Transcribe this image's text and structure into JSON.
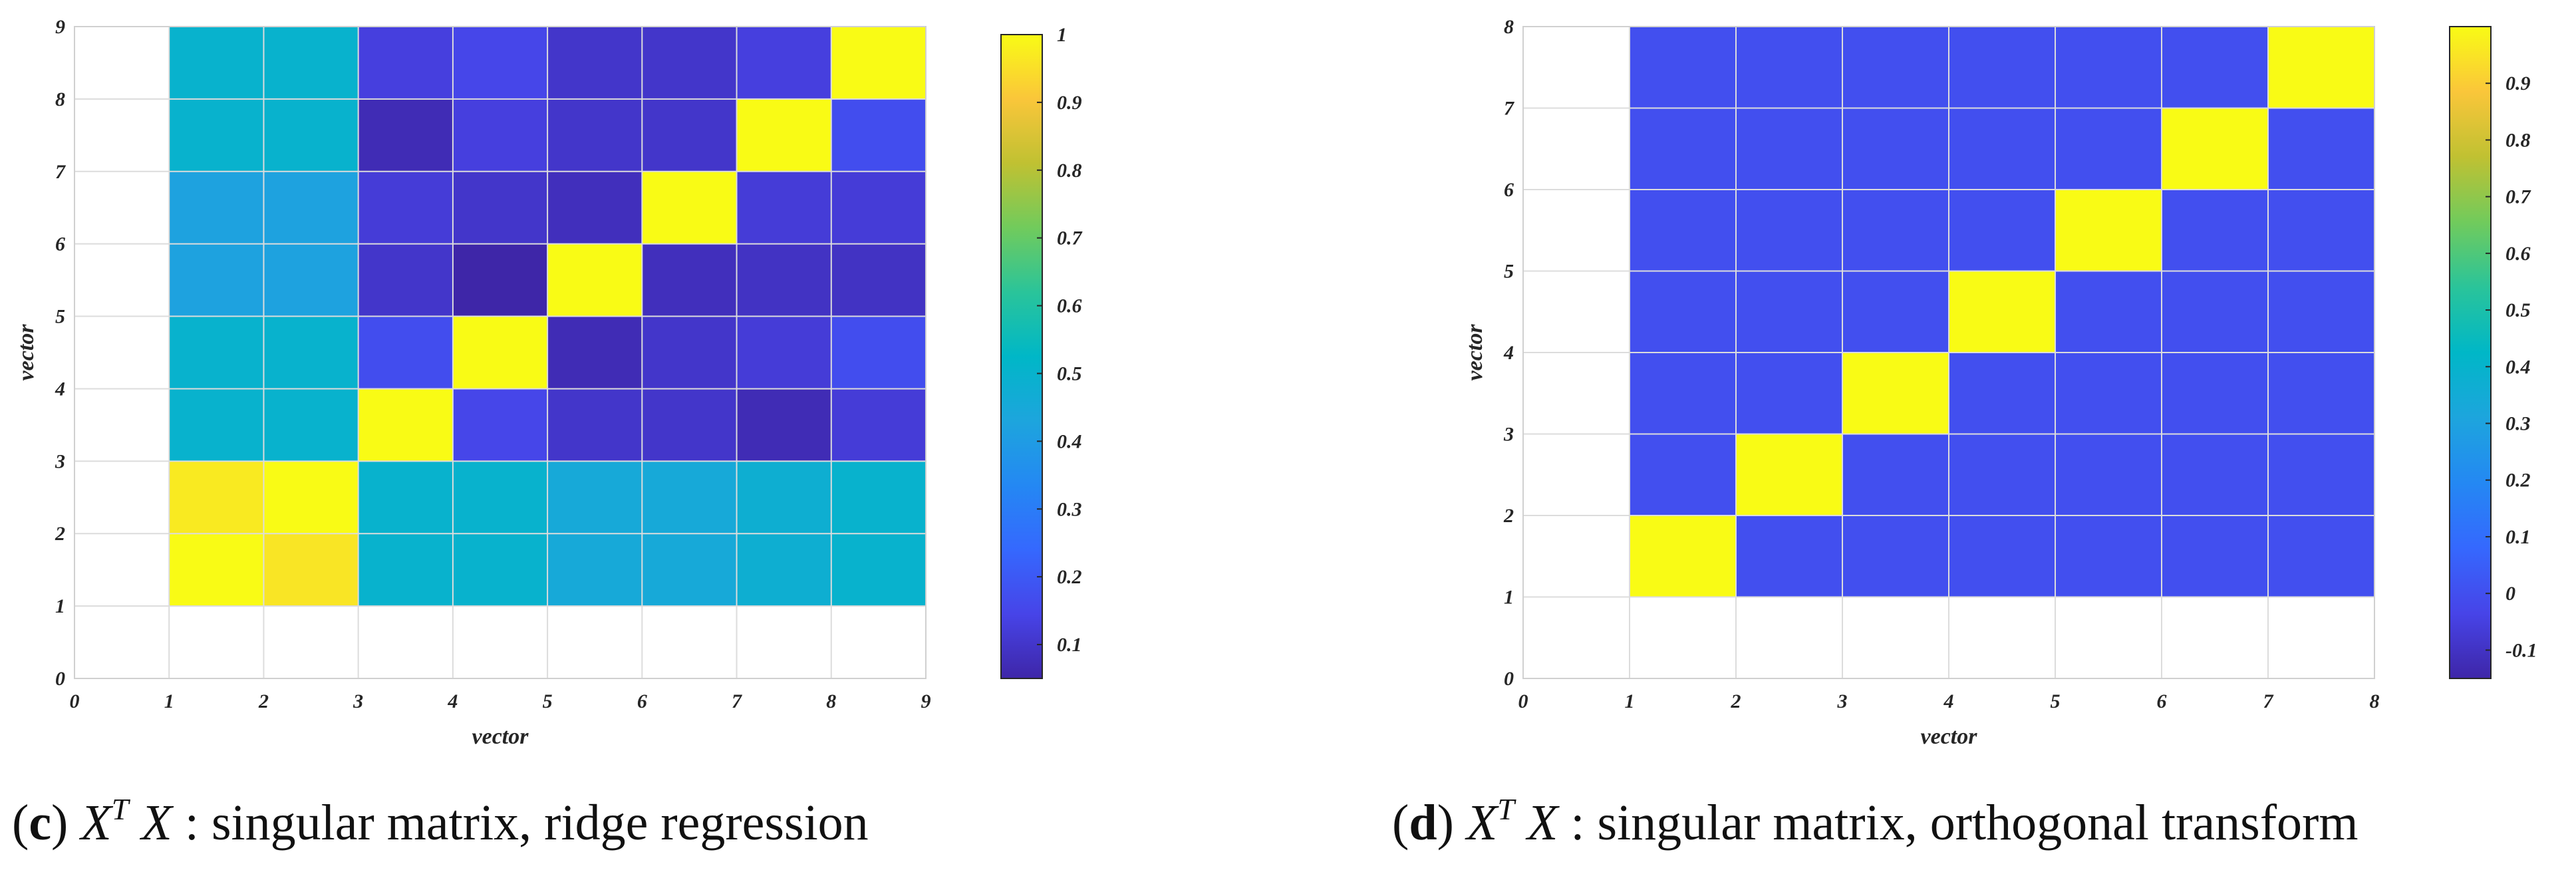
{
  "chart_data": [
    {
      "id": "c",
      "type": "heatmap",
      "xlabel": "vector",
      "ylabel": "vector",
      "xlim": [
        0,
        9
      ],
      "ylim": [
        0,
        9
      ],
      "xticks": [
        "0",
        "1",
        "2",
        "3",
        "4",
        "5",
        "6",
        "7",
        "8",
        "9"
      ],
      "yticks": [
        "0",
        "1",
        "2",
        "3",
        "4",
        "5",
        "6",
        "7",
        "8",
        "9"
      ],
      "extent": {
        "x": [
          1,
          9
        ],
        "y": [
          1,
          9
        ]
      },
      "colorbar": {
        "min": 0.05,
        "max": 1.0,
        "ticks": [
          "0.1",
          "0.2",
          "0.3",
          "0.4",
          "0.5",
          "0.6",
          "0.7",
          "0.8",
          "0.9",
          "1"
        ],
        "tick_values": [
          0.1,
          0.2,
          0.3,
          0.4,
          0.5,
          0.6,
          0.7,
          0.8,
          0.9,
          1.0
        ]
      },
      "matrix": [
        [
          1.0,
          0.96,
          0.5,
          0.5,
          0.45,
          0.45,
          0.48,
          0.5
        ],
        [
          0.97,
          1.0,
          0.5,
          0.5,
          0.45,
          0.45,
          0.48,
          0.5
        ],
        [
          0.5,
          0.5,
          1.0,
          0.15,
          0.1,
          0.1,
          0.07,
          0.12
        ],
        [
          0.5,
          0.5,
          0.17,
          1.0,
          0.07,
          0.1,
          0.12,
          0.17
        ],
        [
          0.42,
          0.42,
          0.1,
          0.05,
          1.0,
          0.08,
          0.09,
          0.09
        ],
        [
          0.42,
          0.42,
          0.12,
          0.1,
          0.08,
          1.0,
          0.12,
          0.12
        ],
        [
          0.5,
          0.5,
          0.07,
          0.13,
          0.1,
          0.1,
          1.0,
          0.17
        ],
        [
          0.5,
          0.5,
          0.13,
          0.15,
          0.1,
          0.1,
          0.13,
          1.0
        ]
      ]
    },
    {
      "id": "d",
      "type": "heatmap",
      "xlabel": "vector",
      "ylabel": "vector",
      "xlim": [
        0,
        8
      ],
      "ylim": [
        0,
        8
      ],
      "xticks": [
        "0",
        "1",
        "2",
        "3",
        "4",
        "5",
        "6",
        "7",
        "8"
      ],
      "yticks": [
        "0",
        "1",
        "2",
        "3",
        "4",
        "5",
        "6",
        "7",
        "8"
      ],
      "extent": {
        "x": [
          1,
          8
        ],
        "y": [
          1,
          8
        ]
      },
      "colorbar": {
        "min": -0.15,
        "max": 1.0,
        "ticks": [
          "-0.1",
          "0",
          "0.1",
          "0.2",
          "0.3",
          "0.4",
          "0.5",
          "0.6",
          "0.7",
          "0.8",
          "0.9"
        ],
        "tick_values": [
          -0.1,
          0.0,
          0.1,
          0.2,
          0.3,
          0.4,
          0.5,
          0.6,
          0.7,
          0.8,
          0.9
        ]
      },
      "matrix": [
        [
          1,
          0,
          0,
          0,
          0,
          0,
          0
        ],
        [
          0,
          1,
          0,
          0,
          0,
          0,
          0
        ],
        [
          0,
          0,
          1,
          0,
          0,
          0,
          0
        ],
        [
          0,
          0,
          0,
          1,
          0,
          0,
          0
        ],
        [
          0,
          0,
          0,
          0,
          1,
          0,
          0
        ],
        [
          0,
          0,
          0,
          0,
          0,
          1,
          0
        ],
        [
          0,
          0,
          0,
          0,
          0,
          0,
          1
        ]
      ]
    }
  ],
  "captions": [
    {
      "letter": "c",
      "math": "X",
      "superscript": "T",
      "math2": "X",
      "text": ": singular matrix, ridge regression"
    },
    {
      "letter": "d",
      "math": "X",
      "superscript": "T",
      "math2": "X",
      "text": ": singular matrix, orthogonal transform"
    }
  ]
}
